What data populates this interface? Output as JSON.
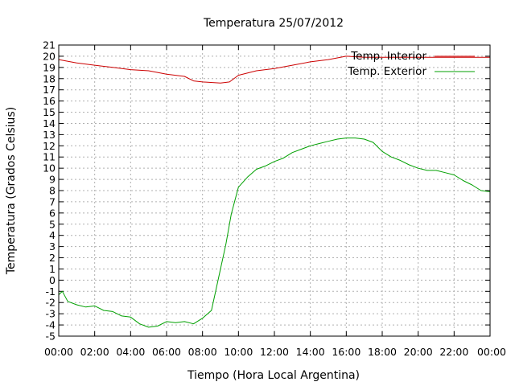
{
  "chart_data": {
    "type": "line",
    "title": "Temperatura 25/07/2012",
    "xlabel": "Tiempo (Hora Local Argentina)",
    "ylabel": "Temperatura (Grados Celsius)",
    "xlim": [
      0,
      24
    ],
    "ylim": [
      -5,
      21
    ],
    "xticks": [
      "00:00",
      "02:00",
      "04:00",
      "06:00",
      "08:00",
      "10:00",
      "12:00",
      "14:00",
      "16:00",
      "18:00",
      "20:00",
      "22:00",
      "00:00"
    ],
    "yticks": [
      -5,
      -4,
      -3,
      -2,
      -1,
      0,
      1,
      2,
      3,
      4,
      5,
      6,
      7,
      8,
      9,
      10,
      11,
      12,
      13,
      14,
      15,
      16,
      17,
      18,
      19,
      20,
      21
    ],
    "grid": true,
    "legend_position": "top-right",
    "series": [
      {
        "name": "Temp. Interior",
        "color": "#cc0000",
        "x": [
          0,
          1,
          2,
          3,
          4,
          5,
          6,
          7,
          7.5,
          8,
          9,
          9.5,
          10,
          11,
          12,
          13,
          14,
          15,
          16,
          17,
          18,
          19,
          20,
          21,
          22,
          23,
          24
        ],
        "y": [
          19.7,
          19.4,
          19.2,
          19.0,
          18.8,
          18.7,
          18.4,
          18.2,
          17.8,
          17.7,
          17.6,
          17.7,
          18.3,
          18.7,
          18.9,
          19.2,
          19.5,
          19.7,
          20.0,
          19.9,
          19.9,
          19.9,
          19.9,
          19.9,
          19.9,
          19.9,
          19.9
        ]
      },
      {
        "name": "Temp. Exterior",
        "color": "#00a000",
        "x": [
          0,
          0.2,
          0.5,
          1,
          1.5,
          2,
          2.5,
          3,
          3.5,
          4,
          4.5,
          5,
          5.5,
          6,
          6.5,
          7,
          7.5,
          8,
          8.5,
          9,
          9.3,
          9.6,
          10,
          10.5,
          11,
          11.5,
          12,
          12.5,
          13,
          13.5,
          14,
          14.5,
          15,
          15.5,
          16,
          16.5,
          17,
          17.5,
          18,
          18.5,
          19,
          19.5,
          20,
          20.5,
          21,
          21.5,
          22,
          22.5,
          23,
          23.5,
          24
        ],
        "y": [
          -1.3,
          -1.0,
          -1.9,
          -2.2,
          -2.4,
          -2.3,
          -2.7,
          -2.8,
          -3.2,
          -3.3,
          -3.9,
          -4.2,
          -4.1,
          -3.7,
          -3.8,
          -3.7,
          -3.9,
          -3.4,
          -2.7,
          1.0,
          3.2,
          5.9,
          8.3,
          9.2,
          9.9,
          10.2,
          10.6,
          10.9,
          11.4,
          11.7,
          12.0,
          12.2,
          12.4,
          12.6,
          12.7,
          12.7,
          12.6,
          12.3,
          11.5,
          11.0,
          10.7,
          10.3,
          10.0,
          9.8,
          9.8,
          9.6,
          9.4,
          8.9,
          8.5,
          8.0,
          7.9
        ]
      }
    ]
  }
}
